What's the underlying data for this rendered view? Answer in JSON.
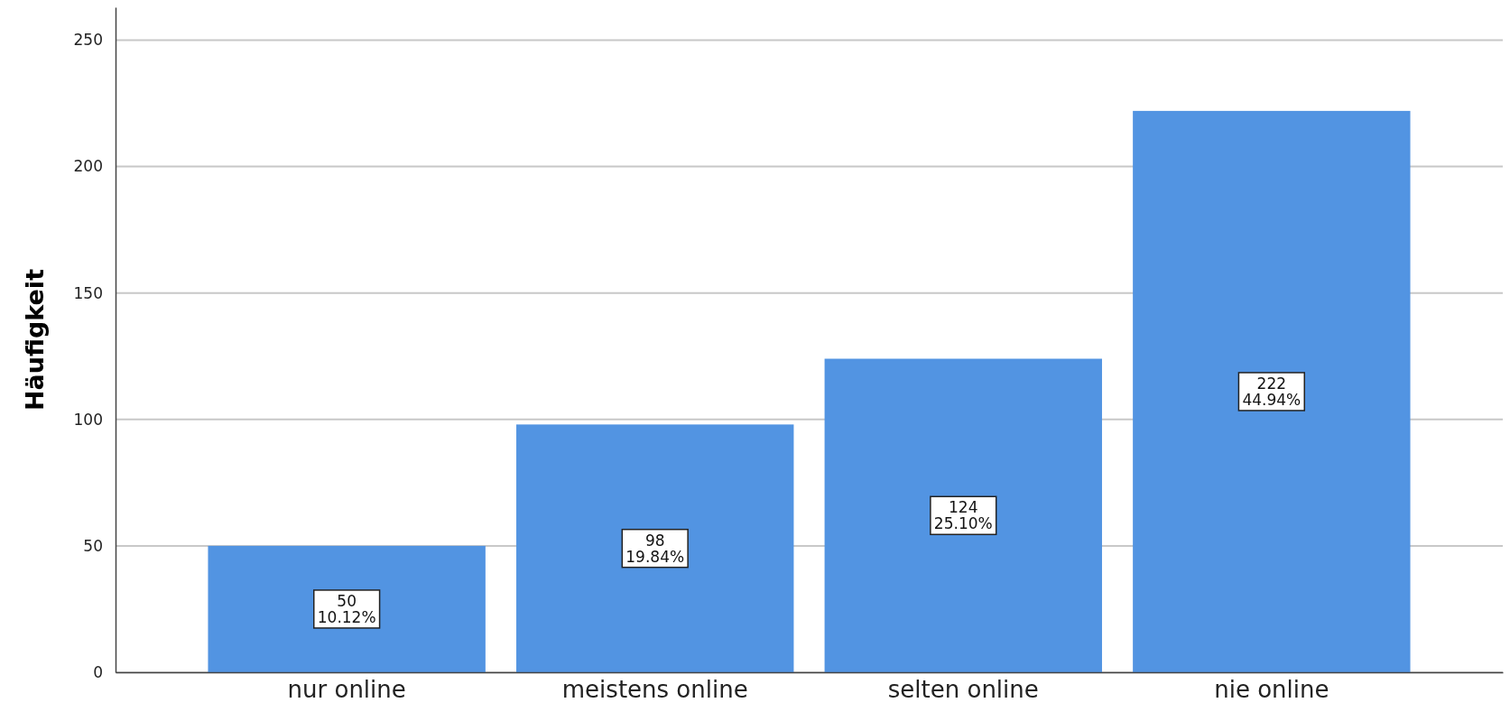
{
  "chart_data": {
    "type": "bar",
    "ylabel": "Häufigkeit",
    "categories": [
      "nur online",
      "meistens online",
      "selten online",
      "nie online"
    ],
    "values": [
      50,
      98,
      124,
      222
    ],
    "color": "#5294e2",
    "value_labels": [
      "50\n10.12%",
      "98\n19.84%",
      "124\n25.10%",
      "222\n44.94%"
    ],
    "ylim": [
      0,
      263
    ],
    "yticks": [
      0,
      50,
      100,
      150,
      200,
      250
    ],
    "grid": "y"
  }
}
